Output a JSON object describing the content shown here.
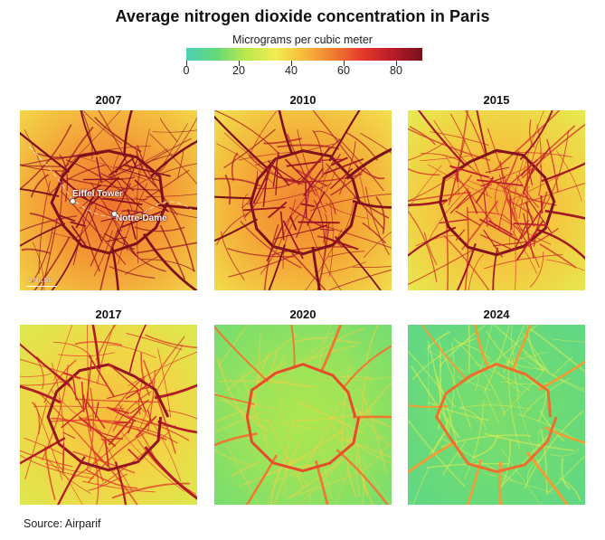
{
  "title": "Average nitrogen dioxide concentration in Paris",
  "legend": {
    "label": "Micrograms per cubic meter",
    "ticks": [
      "0",
      "20",
      "40",
      "60",
      "80"
    ],
    "tick_values": [
      0,
      20,
      40,
      60,
      80
    ],
    "min": 0,
    "max": 90,
    "colors": [
      "#4fd0b5",
      "#63d97a",
      "#b8e84a",
      "#f1ee52",
      "#f6b93a",
      "#f07b30",
      "#e3382a",
      "#b71c2a",
      "#7a0f1c"
    ]
  },
  "panels": [
    {
      "year": "2007",
      "level": 0.95,
      "annotations": {
        "landmark_1": "Eiffel Tower",
        "landmark_2": "Notre-Dame",
        "scale": "2 MILES"
      }
    },
    {
      "year": "2010",
      "level": 0.9
    },
    {
      "year": "2015",
      "level": 0.78
    },
    {
      "year": "2017",
      "level": 0.72
    },
    {
      "year": "2020",
      "level": 0.3
    },
    {
      "year": "2024",
      "level": 0.18
    }
  ],
  "source": "Source: Airparif"
}
